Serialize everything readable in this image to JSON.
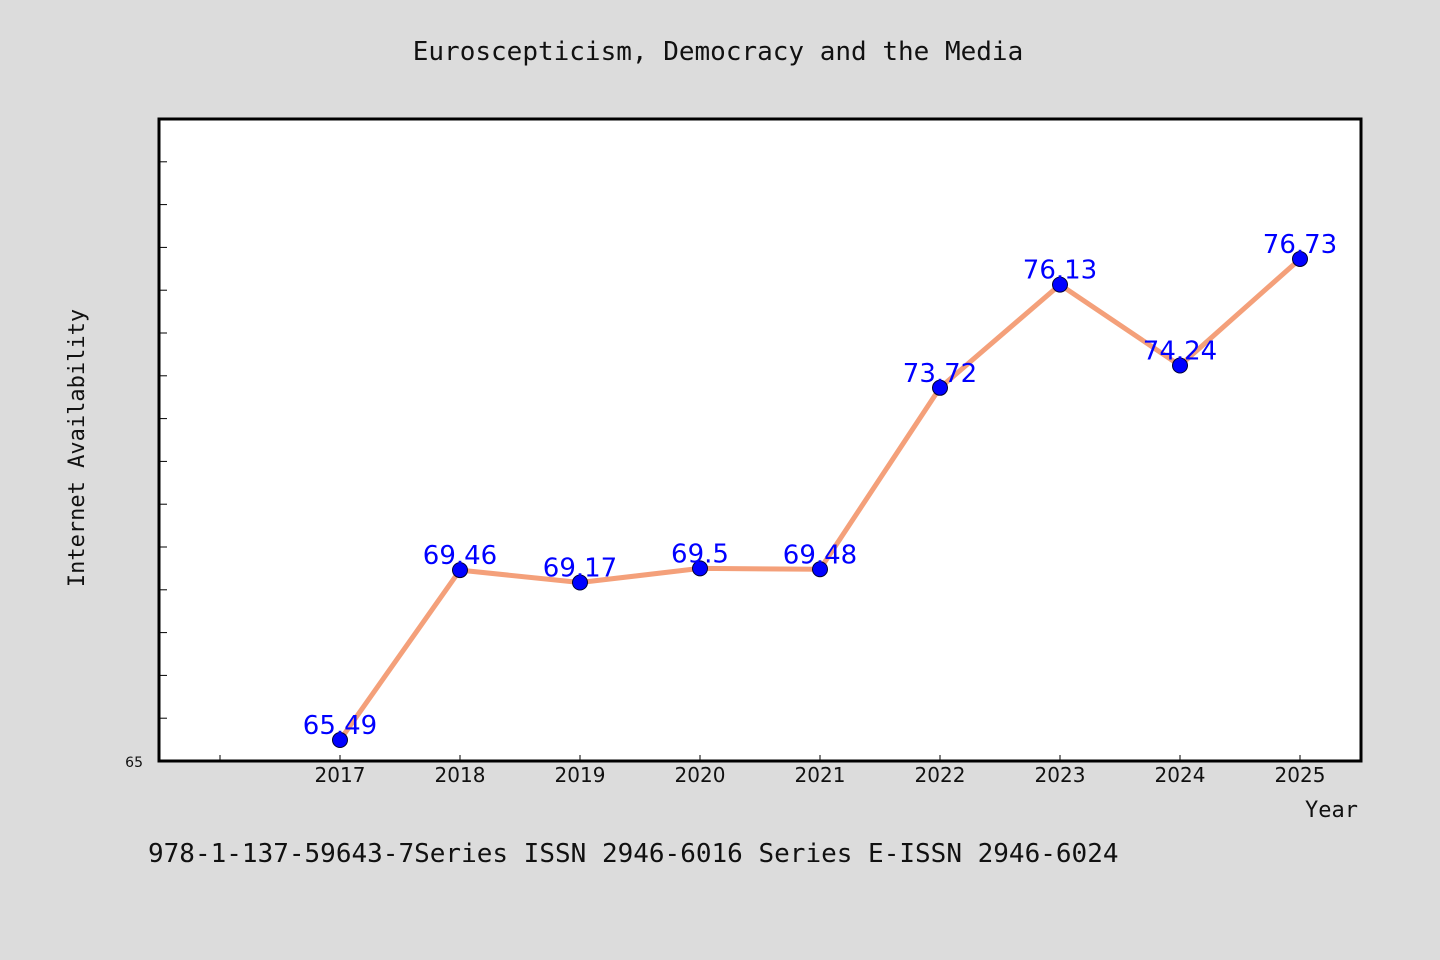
{
  "chart_data": {
    "type": "line",
    "title": "Euroscepticism, Democracy and the Media",
    "xlabel": "Year",
    "ylabel": "Internet Availability",
    "categories": [
      "2017",
      "2018",
      "2019",
      "2020",
      "2021",
      "2022",
      "2023",
      "2024",
      "2025"
    ],
    "series": [
      {
        "values": [
          65.49,
          69.46,
          69.17,
          69.5,
          69.48,
          73.72,
          76.13,
          74.24,
          76.73
        ],
        "labels": [
          "65.49",
          "69.46",
          "69.17",
          "69.5",
          "69.48",
          "73.72",
          "76.13",
          "74.24",
          "76.73"
        ]
      }
    ],
    "ylim": [
      65,
      80
    ],
    "y_tick_label": "65",
    "line_color": "#f4a07a",
    "marker_color": "#0000ff",
    "label_color": "#0000ff",
    "grid": false
  },
  "footer": {
    "text": "978-1-137-59643-7Series ISSN 2946-6016 Series E-ISSN 2946-6024"
  }
}
